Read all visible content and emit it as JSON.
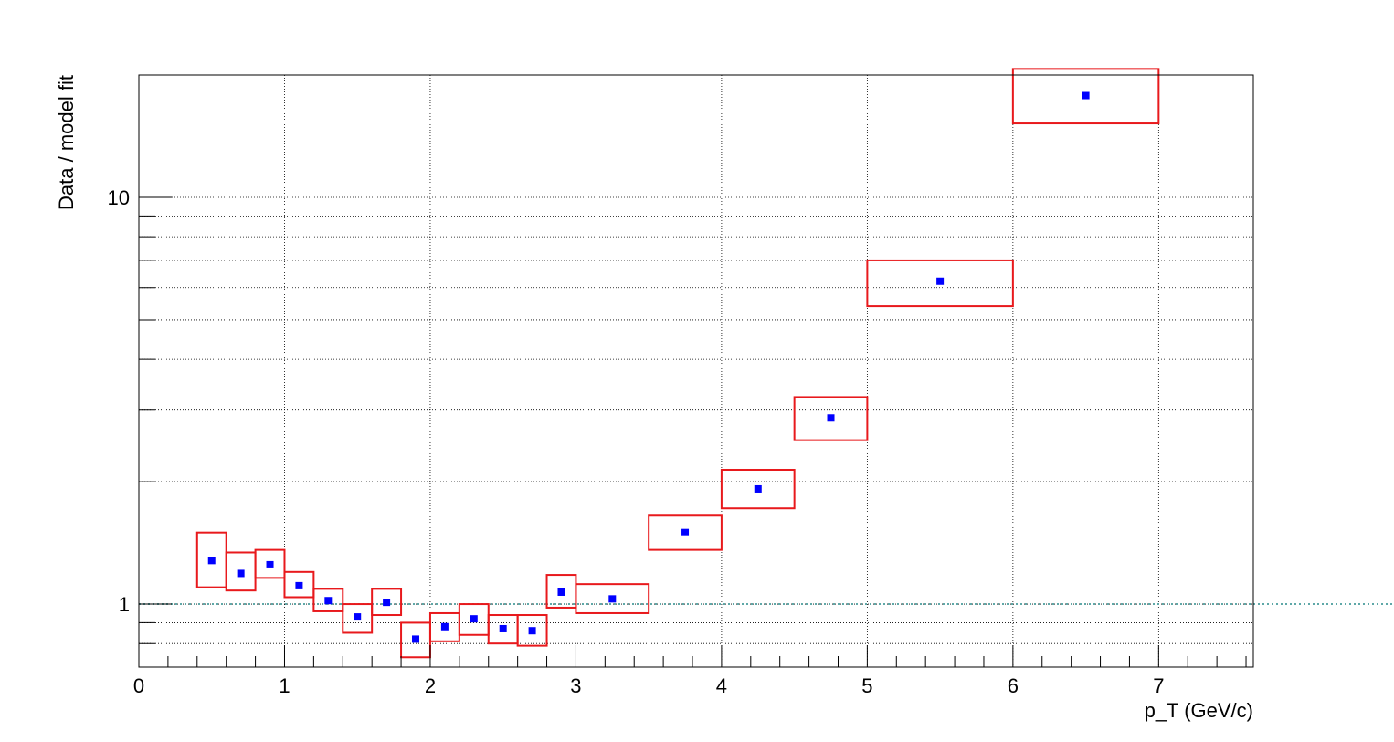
{
  "chart_data": {
    "type": "scatter",
    "title": "",
    "xlabel": "p_T (GeV/c)",
    "ylabel": "Data / model fit",
    "xlim": [
      0,
      7.65
    ],
    "ylim": [
      0.7,
      20
    ],
    "y_scale": "log",
    "grid": true,
    "x_ticks": [
      0,
      1,
      2,
      3,
      4,
      5,
      6,
      7
    ],
    "y_tick_labels": [
      {
        "value": 1,
        "label": "1"
      },
      {
        "value": 10,
        "label": "10"
      }
    ],
    "reference_line": {
      "y": 1,
      "style": "dotted",
      "color": "#5fa8a8"
    },
    "marker_color": "#0000ff",
    "box_color": "#e8191c",
    "points": [
      {
        "x": 0.5,
        "y": 1.28,
        "x_low": 0.4,
        "x_high": 0.6,
        "sys_low": 1.1,
        "sys_high": 1.5
      },
      {
        "x": 0.7,
        "y": 1.19,
        "x_low": 0.6,
        "x_high": 0.8,
        "sys_low": 1.08,
        "sys_high": 1.34
      },
      {
        "x": 0.9,
        "y": 1.25,
        "x_low": 0.8,
        "x_high": 1.0,
        "sys_low": 1.16,
        "sys_high": 1.36
      },
      {
        "x": 1.1,
        "y": 1.11,
        "x_low": 1.0,
        "x_high": 1.2,
        "sys_low": 1.04,
        "sys_high": 1.2
      },
      {
        "x": 1.3,
        "y": 1.02,
        "x_low": 1.2,
        "x_high": 1.4,
        "sys_low": 0.96,
        "sys_high": 1.09
      },
      {
        "x": 1.5,
        "y": 0.93,
        "x_low": 1.4,
        "x_high": 1.6,
        "sys_low": 0.85,
        "sys_high": 1.0
      },
      {
        "x": 1.7,
        "y": 1.01,
        "x_low": 1.6,
        "x_high": 1.8,
        "sys_low": 0.94,
        "sys_high": 1.09
      },
      {
        "x": 1.9,
        "y": 0.82,
        "x_low": 1.8,
        "x_high": 2.0,
        "sys_low": 0.74,
        "sys_high": 0.9
      },
      {
        "x": 2.1,
        "y": 0.88,
        "x_low": 2.0,
        "x_high": 2.2,
        "sys_low": 0.81,
        "sys_high": 0.95
      },
      {
        "x": 2.3,
        "y": 0.92,
        "x_low": 2.2,
        "x_high": 2.4,
        "sys_low": 0.84,
        "sys_high": 1.0
      },
      {
        "x": 2.5,
        "y": 0.87,
        "x_low": 2.4,
        "x_high": 2.6,
        "sys_low": 0.8,
        "sys_high": 0.94
      },
      {
        "x": 2.7,
        "y": 0.86,
        "x_low": 2.6,
        "x_high": 2.8,
        "sys_low": 0.79,
        "sys_high": 0.94
      },
      {
        "x": 2.9,
        "y": 1.07,
        "x_low": 2.8,
        "x_high": 3.0,
        "sys_low": 0.98,
        "sys_high": 1.18
      },
      {
        "x": 3.25,
        "y": 1.03,
        "x_low": 3.0,
        "x_high": 3.5,
        "sys_low": 0.95,
        "sys_high": 1.12
      },
      {
        "x": 3.75,
        "y": 1.5,
        "x_low": 3.5,
        "x_high": 4.0,
        "sys_low": 1.36,
        "sys_high": 1.65
      },
      {
        "x": 4.25,
        "y": 1.92,
        "x_low": 4.0,
        "x_high": 4.5,
        "sys_low": 1.72,
        "sys_high": 2.14
      },
      {
        "x": 4.75,
        "y": 2.87,
        "x_low": 4.5,
        "x_high": 5.0,
        "sys_low": 2.53,
        "sys_high": 3.23
      },
      {
        "x": 5.5,
        "y": 6.22,
        "x_low": 5.0,
        "x_high": 6.0,
        "sys_low": 5.4,
        "sys_high": 7.0
      },
      {
        "x": 6.5,
        "y": 17.8,
        "x_low": 6.0,
        "x_high": 7.0,
        "sys_low": 15.2,
        "sys_high": 20.7
      }
    ]
  }
}
